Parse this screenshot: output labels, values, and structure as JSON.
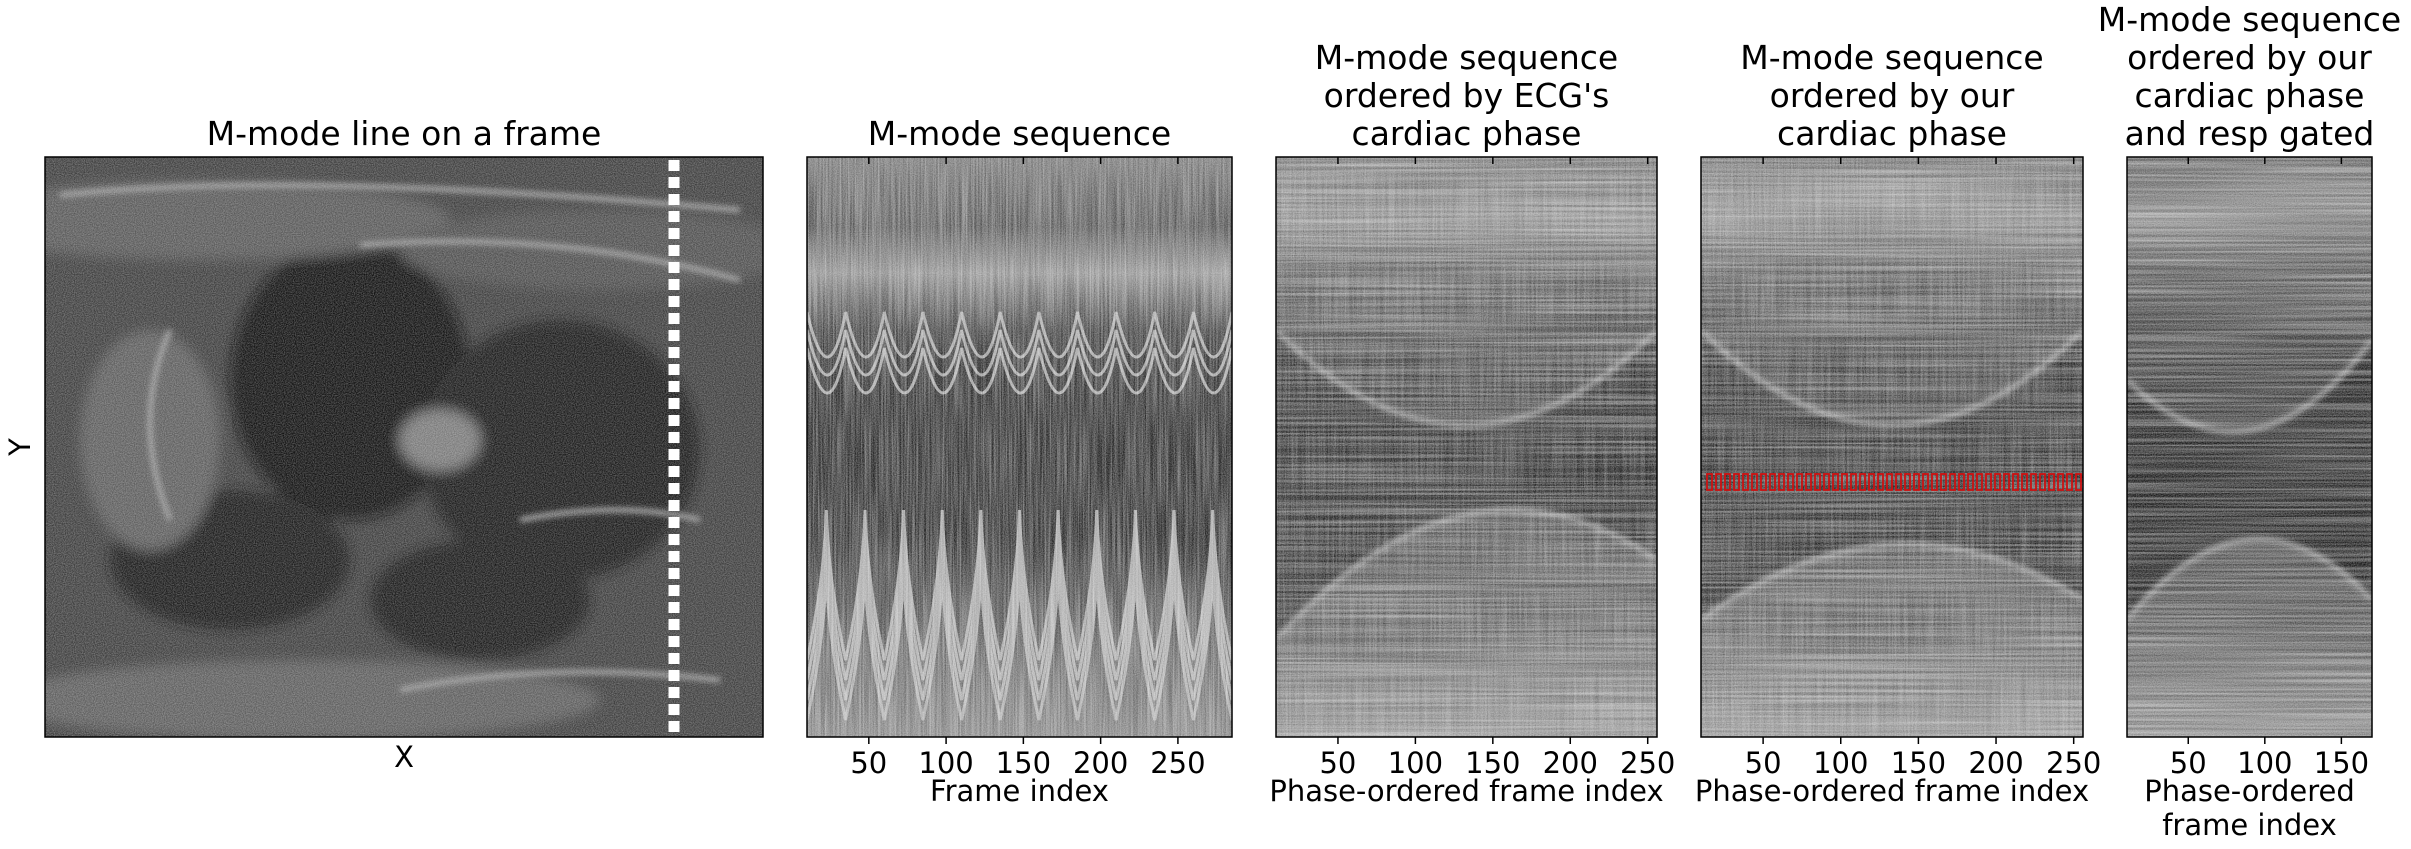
{
  "colors": {
    "axis": "#000000",
    "tick": "#000000",
    "dotted_line": "#ffffff",
    "markers": "#cc1111",
    "background": "#ffffff"
  },
  "panels": [
    {
      "id": "frame",
      "title_lines": [
        "M-mode line on a frame"
      ],
      "xlabel_lines": [
        "X"
      ],
      "ylabel": "Y",
      "xticks": []
    },
    {
      "id": "mmode",
      "title_lines": [
        "M-mode sequence"
      ],
      "xlabel_lines": [
        "Frame index"
      ],
      "xticks": [
        "50",
        "100",
        "150",
        "200",
        "250"
      ]
    },
    {
      "id": "ecg",
      "title_lines": [
        "M-mode sequence",
        "ordered by ECG's",
        "cardiac phase"
      ],
      "xlabel_lines": [
        "Phase-ordered frame index"
      ],
      "xticks": [
        "50",
        "100",
        "150",
        "200",
        "250"
      ]
    },
    {
      "id": "ours",
      "title_lines": [
        "M-mode sequence",
        "ordered by our",
        "cardiac phase"
      ],
      "xlabel_lines": [
        "Phase-ordered frame index"
      ],
      "xticks": [
        "50",
        "100",
        "150",
        "200",
        "250"
      ]
    },
    {
      "id": "resp",
      "title_lines": [
        "M-mode sequence",
        "ordered by our",
        "cardiac phase",
        "and resp gated"
      ],
      "xlabel_lines": [
        "Phase-ordered",
        "frame index"
      ],
      "xticks": [
        "50",
        "100",
        "150"
      ]
    }
  ],
  "chart_data": [
    {
      "type": "heatmap",
      "title": "M-mode line on a frame",
      "xlabel": "X",
      "ylabel": "Y",
      "annotation": "vertical white dotted line marking the M-mode sampling position"
    },
    {
      "type": "heatmap",
      "title": "M-mode sequence",
      "xlabel": "Frame index",
      "ylabel": "",
      "xlim": [
        10,
        285
      ],
      "xticks": [
        50,
        100,
        150,
        200,
        250
      ],
      "cycles_visible": 11
    },
    {
      "type": "heatmap",
      "title": "M-mode sequence ordered by ECG's cardiac phase",
      "xlabel": "Phase-ordered frame index",
      "ylabel": "",
      "xlim": [
        10,
        256
      ],
      "xticks": [
        50,
        100,
        150,
        200,
        250
      ]
    },
    {
      "type": "heatmap",
      "title": "M-mode sequence ordered by our cardiac phase",
      "xlabel": "Phase-ordered frame index",
      "ylabel": "",
      "xlim": [
        10,
        256
      ],
      "xticks": [
        50,
        100,
        150,
        200,
        250
      ],
      "annotation": "row of red markers across the dark chamber region"
    },
    {
      "type": "heatmap",
      "title": "M-mode sequence ordered by our cardiac phase and resp gated",
      "xlabel": "Phase-ordered frame index",
      "ylabel": "",
      "xlim": [
        10,
        170
      ],
      "xticks": [
        50,
        100,
        150
      ]
    }
  ]
}
